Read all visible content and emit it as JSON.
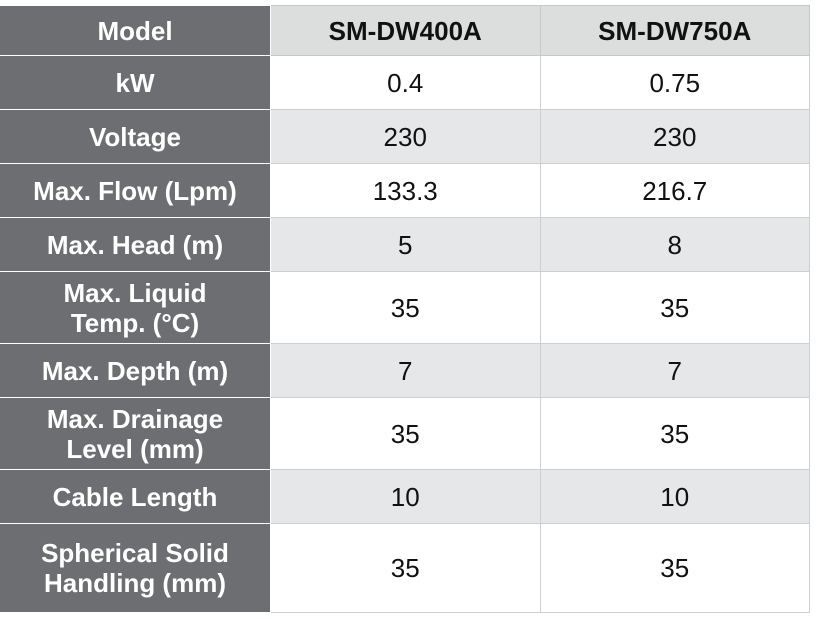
{
  "table": {
    "header": [
      "Model",
      "SM-DW400A",
      "SM-DW750A"
    ],
    "rows": [
      [
        "kW",
        "0.4",
        "0.75"
      ],
      [
        "Voltage",
        "230",
        "230"
      ],
      [
        "Max. Flow (Lpm)",
        "133.3",
        "216.7"
      ],
      [
        "Max. Head (m)",
        "5",
        "8"
      ],
      [
        "Max. Liquid\nTemp. (°C)",
        "35",
        "35"
      ],
      [
        "Max. Depth (m)",
        "7",
        "7"
      ],
      [
        "Max. Drainage\nLevel (mm)",
        "35",
        "35"
      ],
      [
        "Cable Length",
        "10",
        "10"
      ],
      [
        "Spherical Solid\nHandling (mm)",
        "35",
        "35"
      ]
    ]
  }
}
